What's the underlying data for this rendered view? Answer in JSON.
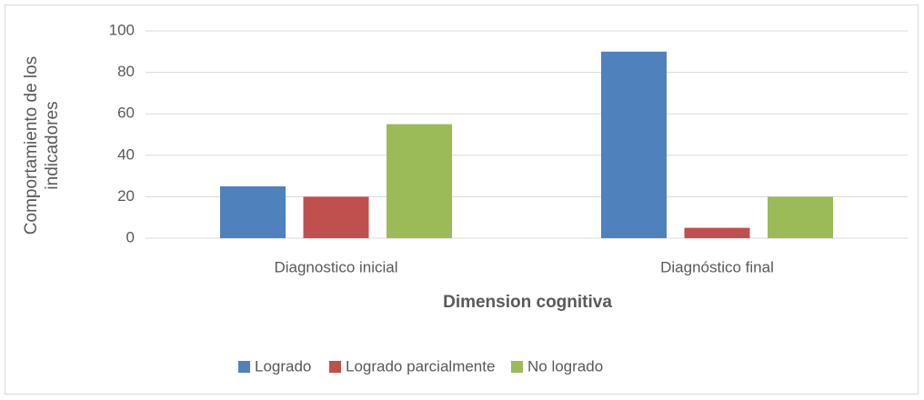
{
  "chart_data": {
    "type": "bar",
    "categories": [
      "Diagnostico inicial",
      "Diagnóstico final"
    ],
    "series": [
      {
        "name": "Logrado",
        "color": "#4f81bd",
        "values": [
          25,
          90
        ]
      },
      {
        "name": "Logrado parcialmente",
        "color": "#c0504d",
        "values": [
          20,
          5
        ]
      },
      {
        "name": "No logrado",
        "color": "#9bbb59",
        "values": [
          55,
          20
        ]
      }
    ],
    "ylim": [
      0,
      100
    ],
    "yticks": [
      0,
      20,
      40,
      60,
      80,
      100
    ],
    "grid": true,
    "x_label": "Dimension cognitiva",
    "y_label": "Comportamiento de los indicadores",
    "legend": "bottom"
  }
}
